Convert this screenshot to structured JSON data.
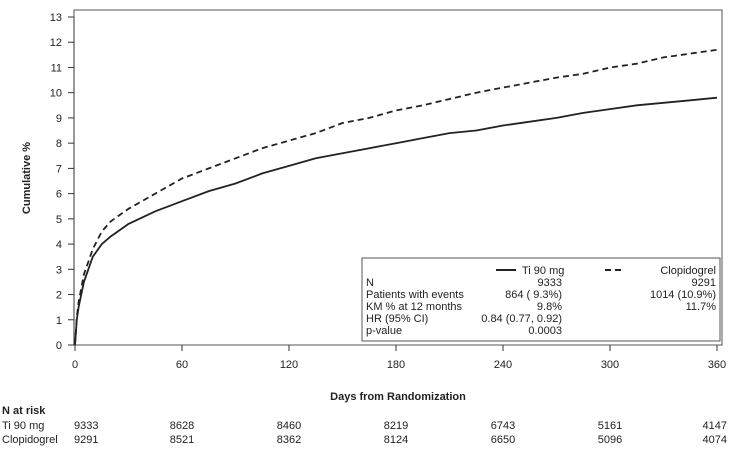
{
  "chart_data": {
    "type": "line",
    "title": "",
    "xlabel": "Days from Randomization",
    "ylabel": "Cumulative %",
    "xlim": [
      0,
      360
    ],
    "ylim": [
      0,
      13
    ],
    "xticks": [
      0,
      60,
      120,
      180,
      240,
      300,
      360
    ],
    "yticks": [
      0,
      1,
      2,
      3,
      4,
      5,
      6,
      7,
      8,
      9,
      10,
      11,
      12,
      13
    ],
    "grid": false,
    "legend_placement": "bottom-right",
    "series": [
      {
        "name": "Ti 90 mg",
        "style": "solid",
        "x": [
          0,
          1,
          2,
          5,
          10,
          15,
          20,
          30,
          45,
          60,
          75,
          90,
          105,
          120,
          135,
          150,
          165,
          180,
          195,
          210,
          225,
          240,
          255,
          270,
          285,
          300,
          315,
          330,
          345,
          360
        ],
        "y": [
          0,
          1.0,
          1.5,
          2.5,
          3.5,
          4.0,
          4.3,
          4.8,
          5.3,
          5.7,
          6.1,
          6.4,
          6.8,
          7.1,
          7.4,
          7.6,
          7.8,
          8.0,
          8.2,
          8.4,
          8.5,
          8.7,
          8.85,
          9.0,
          9.2,
          9.35,
          9.5,
          9.6,
          9.7,
          9.8
        ]
      },
      {
        "name": "Clopidogrel",
        "style": "dashed",
        "x": [
          0,
          1,
          2,
          5,
          10,
          15,
          20,
          30,
          45,
          60,
          75,
          90,
          105,
          120,
          135,
          150,
          165,
          180,
          195,
          210,
          225,
          240,
          255,
          270,
          285,
          300,
          315,
          330,
          345,
          360
        ],
        "y": [
          0,
          1.1,
          1.7,
          2.8,
          3.8,
          4.5,
          4.9,
          5.4,
          6.0,
          6.6,
          7.0,
          7.4,
          7.8,
          8.1,
          8.4,
          8.8,
          9.0,
          9.3,
          9.5,
          9.75,
          10.0,
          10.2,
          10.4,
          10.6,
          10.75,
          11.0,
          11.15,
          11.4,
          11.55,
          11.7
        ]
      }
    ],
    "legend_table": {
      "headers": [
        "Ti 90 mg",
        "Clopidogrel"
      ],
      "rows": [
        {
          "label": "N",
          "a": "9333",
          "b": "9291"
        },
        {
          "label": "Patients with events",
          "a": "864 ( 9.3%)",
          "b": "1014 (10.9%)"
        },
        {
          "label": "KM % at 12 months",
          "a": "9.8%",
          "b": "11.7%"
        },
        {
          "label": "HR (95% CI)",
          "a": "0.84 (0.77, 0.92)",
          "b": ""
        },
        {
          "label": "p-value",
          "a": "0.0003",
          "b": ""
        }
      ]
    },
    "at_risk": {
      "title": "N at risk",
      "rows": [
        {
          "label": "Ti 90 mg",
          "values": [
            "9333",
            "8628",
            "8460",
            "8219",
            "6743",
            "5161",
            "4147"
          ]
        },
        {
          "label": "Clopidogrel",
          "values": [
            "9291",
            "8521",
            "8362",
            "8124",
            "6650",
            "5096",
            "4074"
          ]
        }
      ]
    }
  }
}
